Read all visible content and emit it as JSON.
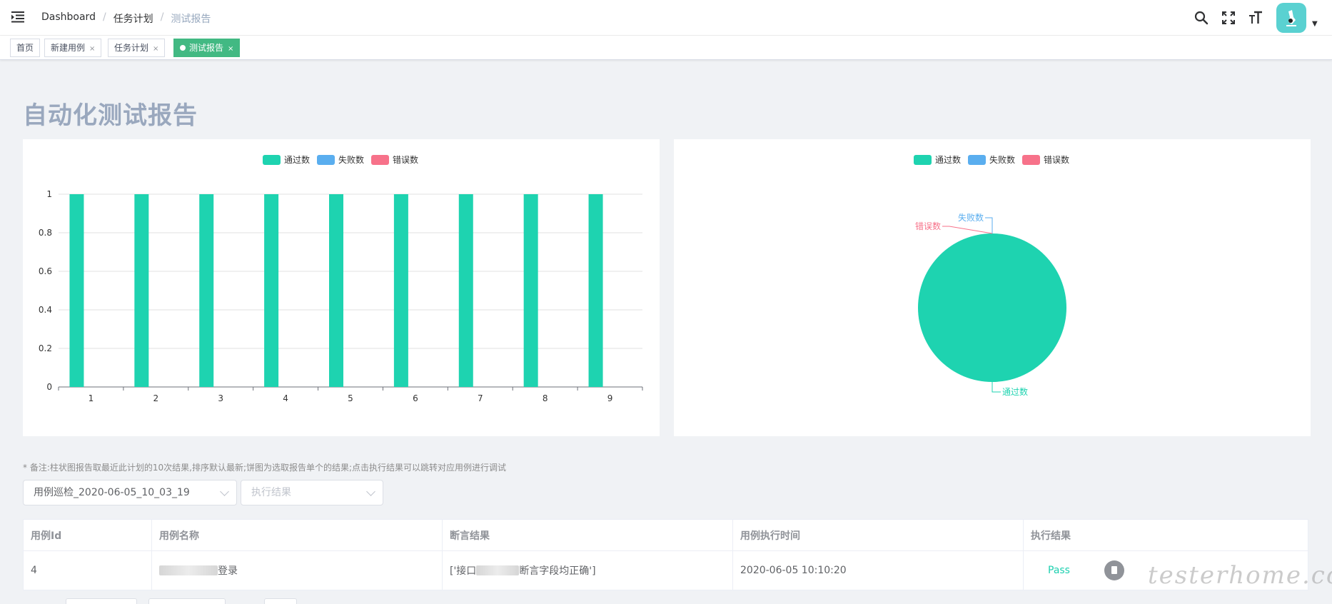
{
  "breadcrumb": {
    "items": [
      "Dashboard",
      "任务计划",
      "测试报告"
    ],
    "separator": "/"
  },
  "navbar_icons": [
    "search-icon",
    "fullscreen-icon",
    "font-size-icon"
  ],
  "tags": [
    {
      "label": "首页",
      "closable": false,
      "active": false
    },
    {
      "label": "新建用例",
      "closable": true,
      "active": false
    },
    {
      "label": "任务计划",
      "closable": true,
      "active": false
    },
    {
      "label": "测试报告",
      "closable": true,
      "active": true
    }
  ],
  "tag_close": "×",
  "page_title": "自动化测试报告",
  "legend": [
    {
      "name": "通过数",
      "color": "#1ed3b0"
    },
    {
      "name": "失败数",
      "color": "#5aaeef"
    },
    {
      "name": "错误数",
      "color": "#f7728a"
    }
  ],
  "chart_data": [
    {
      "type": "bar",
      "categories": [
        "1",
        "2",
        "3",
        "4",
        "5",
        "6",
        "7",
        "8",
        "9"
      ],
      "series": [
        {
          "name": "通过数",
          "values": [
            1,
            1,
            1,
            1,
            1,
            1,
            1,
            1,
            1
          ]
        },
        {
          "name": "失败数",
          "values": [
            0,
            0,
            0,
            0,
            0,
            0,
            0,
            0,
            0
          ]
        },
        {
          "name": "错误数",
          "values": [
            0,
            0,
            0,
            0,
            0,
            0,
            0,
            0,
            0
          ]
        }
      ],
      "ylim": [
        0,
        1
      ],
      "yticks": [
        "0",
        "0.2",
        "0.4",
        "0.6",
        "0.8",
        "1"
      ],
      "grid": true,
      "legend": "top-center"
    },
    {
      "type": "pie",
      "slices": [
        {
          "name": "通过数",
          "value": 1
        },
        {
          "name": "失败数",
          "value": 0
        },
        {
          "name": "错误数",
          "value": 0
        }
      ],
      "legend": "top-center"
    }
  ],
  "note": "* 备注:柱状图报告取最近此计划的10次结果,排序默认最新;饼图为选取报告单个的结果;点击执行结果可以跳转对应用例进行调试",
  "filters": {
    "report_select": "用例巡检_2020-06-05_10_03_19",
    "result_placeholder": "执行结果"
  },
  "table": {
    "headers": [
      "用例Id",
      "用例名称",
      "断言结果",
      "用例执行时间",
      "执行结果"
    ],
    "rows": [
      {
        "id": "4",
        "name_suffix": "登录",
        "assert_prefix": "['接口",
        "assert_suffix": "断言字段均正确']",
        "time": "2020-06-05 10:10:20",
        "result": "Pass"
      }
    ]
  },
  "watermark": "testerhome.com"
}
